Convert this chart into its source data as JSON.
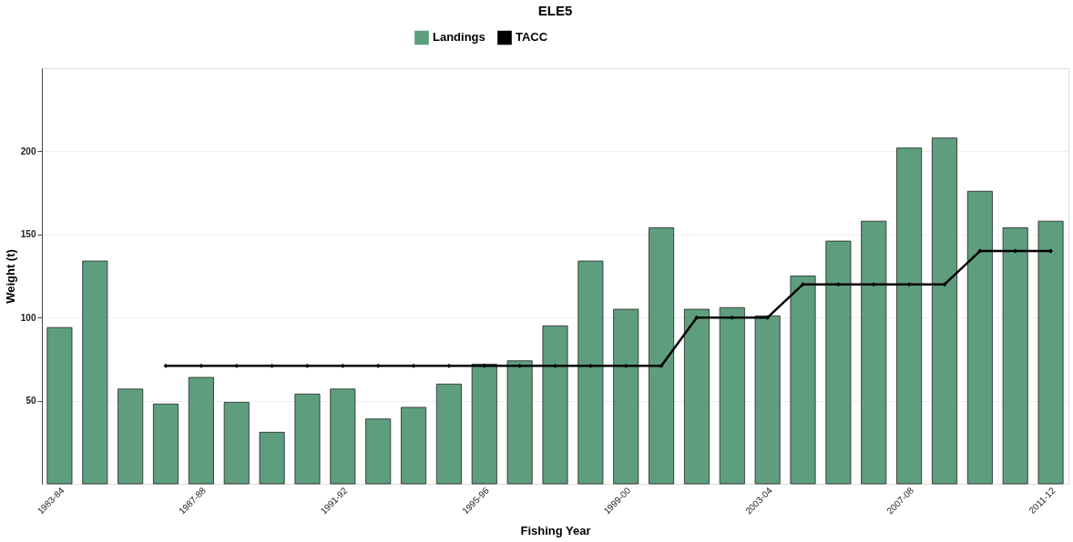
{
  "chart_data": {
    "type": "bar",
    "title": "ELE5",
    "xlabel": "Fishing Year",
    "ylabel": "Weight (t)",
    "categories": [
      "1983-84",
      null,
      null,
      null,
      "1987-88",
      null,
      null,
      null,
      "1991-92",
      null,
      null,
      null,
      "1995-96",
      null,
      null,
      null,
      "1999-00",
      null,
      null,
      null,
      "2003-04",
      null,
      null,
      null,
      "2007-08",
      null,
      null,
      null,
      "2011-12"
    ],
    "series": [
      {
        "name": "Landings",
        "color": "#5e9e7e",
        "values": [
          94,
          134,
          57,
          48,
          64,
          49,
          31,
          54,
          57,
          39,
          46,
          60,
          72,
          74,
          95,
          134,
          105,
          154,
          105,
          106,
          101,
          125,
          146,
          158,
          202,
          208,
          176,
          154,
          158
        ]
      },
      {
        "name": "TACC",
        "type": "line",
        "color": "#000000",
        "marker": "diamond",
        "line_style": "solid",
        "values": [
          null,
          null,
          null,
          71,
          71,
          71,
          71,
          71,
          71,
          71,
          71,
          71,
          71,
          71,
          71,
          71,
          71,
          71,
          100,
          100,
          100,
          120,
          120,
          120,
          120,
          120,
          140,
          140,
          140
        ]
      }
    ],
    "ylim": [
      0,
      250
    ],
    "yticks": [
      50,
      100,
      150,
      200
    ],
    "grid": "y",
    "legend": "top"
  }
}
